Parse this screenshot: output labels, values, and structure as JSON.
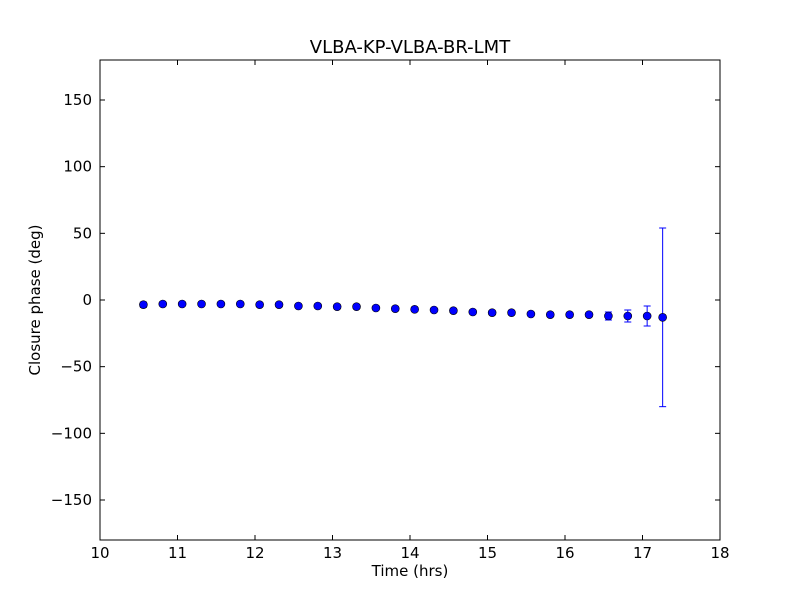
{
  "chart_data": {
    "type": "scatter",
    "title": "VLBA-KP-VLBA-BR-LMT",
    "xlabel": "Time (hrs)",
    "ylabel": "Closure phase (deg)",
    "xlim": [
      10,
      18
    ],
    "ylim": [
      -180,
      180
    ],
    "xticks": [
      10,
      11,
      12,
      13,
      14,
      15,
      16,
      17,
      18
    ],
    "yticks": [
      -150,
      -100,
      -50,
      0,
      50,
      100,
      150
    ],
    "yticklabels": [
      "−150",
      "−100",
      "−50",
      "0",
      "50",
      "100",
      "150"
    ],
    "grid": false,
    "legend": "none",
    "colors": {
      "marker": "#0000ff",
      "errorbar": "#0000ff",
      "axes": "#000000"
    },
    "series": [
      {
        "x": [
          10.56,
          10.81,
          11.06,
          11.31,
          11.56,
          11.81,
          12.06,
          12.31,
          12.56,
          12.81,
          13.06,
          13.31,
          13.56,
          13.81,
          14.06,
          14.31,
          14.56,
          14.81,
          15.06,
          15.31,
          15.56,
          15.81,
          16.06,
          16.31,
          16.56,
          16.81,
          17.06,
          17.26
        ],
        "y": [
          -3.5,
          -3.0,
          -3.0,
          -3.0,
          -3.0,
          -3.0,
          -3.5,
          -3.5,
          -4.5,
          -4.5,
          -5.0,
          -5.0,
          -6.0,
          -6.5,
          -7.0,
          -7.5,
          -8.0,
          -9.0,
          -9.5,
          -9.5,
          -10.5,
          -11.0,
          -11.0,
          -11.0,
          -12.0,
          -12.0,
          -12.0,
          -13.0
        ],
        "yerr": [
          2,
          1.5,
          1.5,
          1.5,
          1.5,
          1.5,
          1.5,
          1.5,
          1.5,
          1.5,
          1.5,
          1.5,
          1.5,
          1.5,
          1.5,
          1.5,
          1.5,
          1.5,
          1.5,
          1.5,
          1.5,
          1.5,
          1.5,
          1.5,
          3,
          4.5,
          7.5,
          67
        ]
      }
    ]
  }
}
